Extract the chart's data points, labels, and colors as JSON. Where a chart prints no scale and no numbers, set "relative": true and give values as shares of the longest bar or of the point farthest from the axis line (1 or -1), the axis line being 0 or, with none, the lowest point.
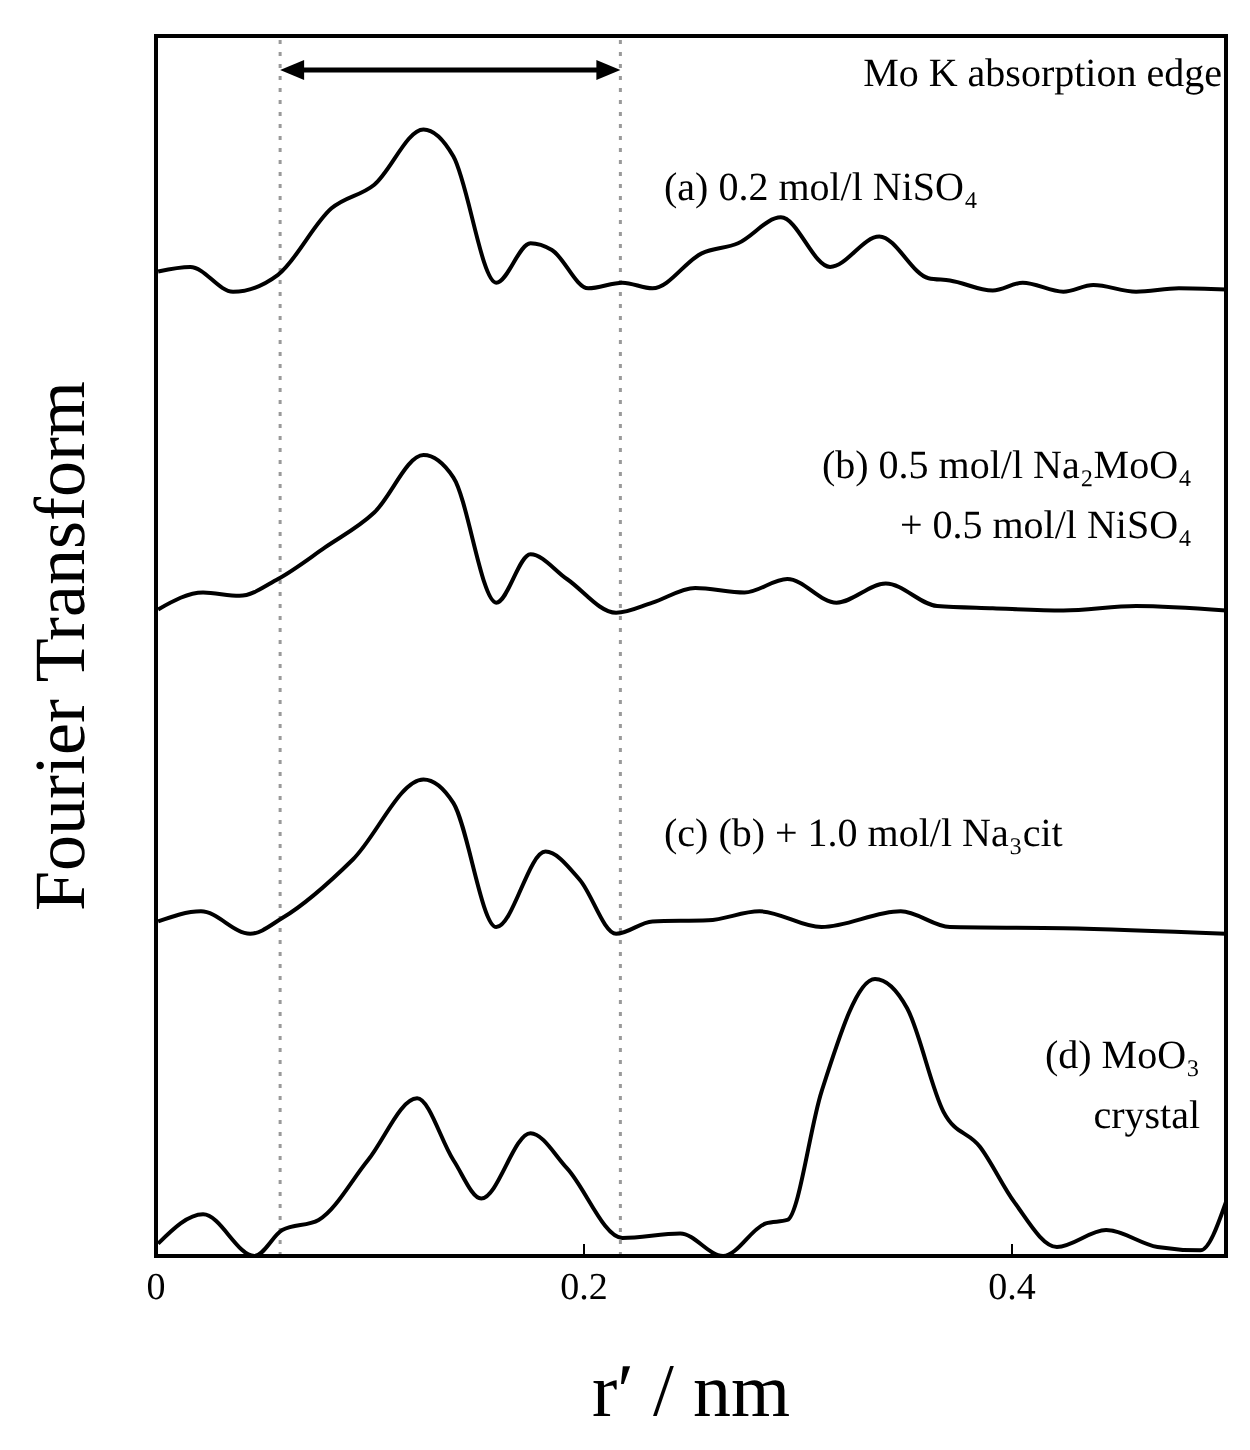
{
  "chart_data": {
    "type": "line",
    "relative": true,
    "xlabel": "r′ / nm",
    "ylabel": "Fourier Transform",
    "annotations": [
      "Mo K absorption edge"
    ],
    "xlim": [
      0,
      0.5
    ],
    "xticks": [
      0,
      0.2,
      0.4
    ],
    "legend": false,
    "marker": "none",
    "line_style": "solid",
    "ref_lines": [
      {
        "axis": "x",
        "value": 0.058,
        "color": "#999999",
        "line_style": "dotted"
      },
      {
        "axis": "x",
        "value": 0.217,
        "color": "#999999",
        "line_style": "dotted"
      }
    ],
    "series": [
      {
        "name": "(a) 0.2 mol/l NiSO₄",
        "color": "#000000",
        "x": [
          0.001,
          0.016,
          0.036,
          0.057,
          0.082,
          0.102,
          0.125,
          0.139,
          0.159,
          0.175,
          0.185,
          0.202,
          0.218,
          0.232,
          0.255,
          0.272,
          0.292,
          0.315,
          0.338,
          0.361,
          0.371,
          0.391,
          0.405,
          0.424,
          0.438,
          0.458,
          0.478,
          0.5
        ],
        "values": [
          0.874,
          0.878,
          0.856,
          0.871,
          0.93,
          0.951,
          1.0,
          0.976,
          0.864,
          0.899,
          0.893,
          0.859,
          0.864,
          0.859,
          0.89,
          0.899,
          0.922,
          0.878,
          0.905,
          0.868,
          0.866,
          0.857,
          0.864,
          0.856,
          0.862,
          0.856,
          0.859,
          0.858
        ]
      },
      {
        "name": "(b) 0.5 mol/l Na₂MoO₄ + 0.5 mol/l NiSO₄",
        "color": "#000000",
        "x": [
          0.001,
          0.022,
          0.039,
          0.057,
          0.079,
          0.102,
          0.125,
          0.139,
          0.159,
          0.175,
          0.192,
          0.215,
          0.232,
          0.252,
          0.275,
          0.295,
          0.318,
          0.341,
          0.365,
          0.391,
          0.424,
          0.458,
          0.5
        ],
        "values": [
          0.574,
          0.589,
          0.586,
          0.601,
          0.629,
          0.66,
          0.711,
          0.691,
          0.58,
          0.623,
          0.601,
          0.571,
          0.58,
          0.593,
          0.589,
          0.601,
          0.58,
          0.597,
          0.577,
          0.575,
          0.573,
          0.577,
          0.573
        ]
      },
      {
        "name": "(c) (b) + 1.0 mol/l Na₃cit",
        "color": "#000000",
        "x": [
          0.001,
          0.021,
          0.044,
          0.059,
          0.092,
          0.125,
          0.139,
          0.159,
          0.182,
          0.198,
          0.215,
          0.232,
          0.258,
          0.282,
          0.311,
          0.348,
          0.371,
          0.424,
          0.5
        ],
        "values": [
          0.297,
          0.306,
          0.286,
          0.3,
          0.352,
          0.423,
          0.402,
          0.292,
          0.359,
          0.334,
          0.286,
          0.297,
          0.298,
          0.306,
          0.292,
          0.306,
          0.292,
          0.291,
          0.286
        ]
      },
      {
        "name": "(d) MoO₃ crystal",
        "color": "#000000",
        "x": [
          0.001,
          0.022,
          0.046,
          0.059,
          0.076,
          0.099,
          0.122,
          0.139,
          0.152,
          0.175,
          0.192,
          0.218,
          0.245,
          0.265,
          0.285,
          0.295,
          0.311,
          0.336,
          0.351,
          0.368,
          0.385,
          0.401,
          0.421,
          0.444,
          0.468,
          0.488,
          0.5
        ],
        "values": [
          0.011,
          0.037,
          0,
          0.023,
          0.032,
          0.085,
          0.14,
          0.085,
          0.051,
          0.109,
          0.078,
          0.016,
          0.02,
          0,
          0.029,
          0.032,
          0.146,
          0.246,
          0.22,
          0.128,
          0.097,
          0.048,
          0.008,
          0.023,
          0.008,
          0.005,
          0.048
        ]
      }
    ]
  }
}
